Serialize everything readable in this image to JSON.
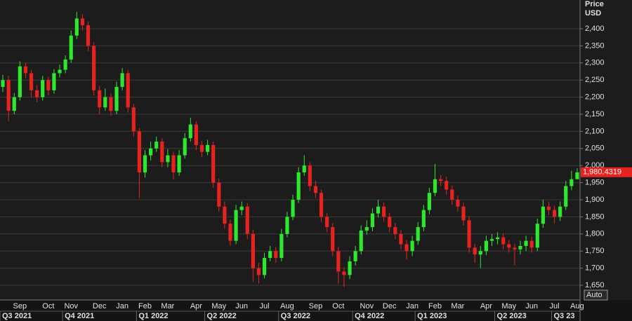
{
  "chart_data": {
    "type": "candlestick",
    "y_axis_title": "Price",
    "y_axis_unit": "USD",
    "button": "Auto",
    "up_color": "#2ee82e",
    "down_color": "#e8221e",
    "grid": true,
    "ylim": [
      1607,
      2484
    ],
    "yticks": [
      {
        "value": 1650,
        "label": "1,650"
      },
      {
        "value": 1700,
        "label": "1,700"
      },
      {
        "value": 1750,
        "label": "1,750"
      },
      {
        "value": 1800,
        "label": "1,800"
      },
      {
        "value": 1850,
        "label": "1,850"
      },
      {
        "value": 1900,
        "label": "1,900"
      },
      {
        "value": 1950,
        "label": "1,950"
      },
      {
        "value": 2000,
        "label": "2,000"
      },
      {
        "value": 2050,
        "label": "2,050"
      },
      {
        "value": 2100,
        "label": "2,100"
      },
      {
        "value": 2150,
        "label": "2,150"
      },
      {
        "value": 2200,
        "label": "2,200"
      },
      {
        "value": 2250,
        "label": "2,250"
      },
      {
        "value": 2300,
        "label": "2,300"
      },
      {
        "value": 2350,
        "label": "2,350"
      },
      {
        "value": 2400,
        "label": "2,400"
      }
    ],
    "last_price": {
      "value": 1980.4319,
      "label": "1,980.4319"
    },
    "categories": [
      null,
      null,
      null,
      "Sep",
      null,
      null,
      null,
      null,
      "Oct",
      null,
      null,
      null,
      "Nov",
      null,
      null,
      null,
      null,
      "Dec",
      null,
      null,
      null,
      "Jan",
      null,
      null,
      null,
      "Feb",
      null,
      null,
      null,
      "Mar",
      null,
      null,
      null,
      null,
      "Apr",
      null,
      null,
      null,
      "May",
      null,
      null,
      null,
      "Jun",
      null,
      null,
      null,
      "Jul",
      null,
      null,
      null,
      "Aug",
      null,
      null,
      null,
      null,
      "Sep",
      null,
      null,
      null,
      "Oct",
      null,
      null,
      null,
      null,
      "Nov",
      null,
      null,
      null,
      "Dec",
      null,
      null,
      null,
      "Jan",
      null,
      null,
      null,
      "Feb",
      null,
      null,
      null,
      "Mar",
      null,
      null,
      null,
      null,
      "Apr",
      null,
      null,
      null,
      "May",
      null,
      null,
      null,
      "Jun",
      null,
      null,
      null,
      "Jul",
      null,
      null,
      null,
      "Aug"
    ],
    "quarters": [
      "Q3 2021",
      null,
      null,
      null,
      null,
      null,
      null,
      null,
      null,
      null,
      null,
      "Q4 2021",
      null,
      null,
      null,
      null,
      null,
      null,
      null,
      null,
      null,
      null,
      null,
      null,
      "Q1 2022",
      null,
      null,
      null,
      null,
      null,
      null,
      null,
      null,
      null,
      null,
      null,
      "Q2 2022",
      null,
      null,
      null,
      null,
      null,
      null,
      null,
      null,
      null,
      null,
      null,
      null,
      "Q3 2022",
      null,
      null,
      null,
      null,
      null,
      null,
      null,
      null,
      null,
      null,
      null,
      null,
      "Q4 2022",
      null,
      null,
      null,
      null,
      null,
      null,
      null,
      null,
      null,
      null,
      "Q1 2023",
      null,
      null,
      null,
      null,
      null,
      null,
      null,
      null,
      null,
      null,
      null,
      null,
      null,
      "Q2 2023",
      null,
      null,
      null,
      null,
      null,
      null,
      null,
      null,
      null,
      "Q3 23",
      null,
      null,
      null,
      null
    ],
    "open": [
      2230,
      2250,
      2160,
      2200,
      2290,
      2270,
      2220,
      2200,
      2250,
      2220,
      2270,
      2280,
      2310,
      2380,
      2430,
      2410,
      2350,
      2220,
      2170,
      2200,
      2160,
      2230,
      2270,
      2170,
      2100,
      1980,
      2030,
      2050,
      2070,
      2010,
      2030,
      1980,
      2030,
      2080,
      2120,
      2060,
      2040,
      2060,
      1950,
      1880,
      1830,
      1780,
      1870,
      1880,
      1800,
      1700,
      1680,
      1730,
      1750,
      1730,
      1800,
      1850,
      1900,
      1980,
      2000,
      1940,
      1920,
      1850,
      1820,
      1750,
      1690,
      1680,
      1720,
      1750,
      1810,
      1820,
      1860,
      1880,
      1850,
      1820,
      1800,
      1770,
      1750,
      1780,
      1820,
      1870,
      1920,
      1960,
      1955,
      1930,
      1900,
      1880,
      1840,
      1760,
      1740,
      1750,
      1780,
      1785,
      1790,
      1770,
      1760,
      1755,
      1765,
      1780,
      1760,
      1830,
      1880,
      1870,
      1850,
      1880,
      1940,
      1960
    ],
    "high": [
      2265,
      2262,
      2212,
      2305,
      2300,
      2280,
      2235,
      2262,
      2260,
      2282,
      2295,
      2322,
      2395,
      2450,
      2442,
      2420,
      2360,
      2232,
      2225,
      2212,
      2245,
      2285,
      2280,
      2180,
      2110,
      2045,
      2070,
      2085,
      2080,
      2048,
      2040,
      2045,
      2095,
      2140,
      2130,
      2072,
      2075,
      2070,
      1962,
      1895,
      1842,
      1885,
      1895,
      1890,
      1812,
      1715,
      1745,
      1765,
      1762,
      1815,
      1865,
      1915,
      1995,
      2030,
      2010,
      1955,
      1930,
      1862,
      1832,
      1762,
      1702,
      1735,
      1765,
      1825,
      1840,
      1875,
      1900,
      1892,
      1862,
      1832,
      1812,
      1782,
      1795,
      1835,
      1885,
      1935,
      2005,
      1972,
      1968,
      1942,
      1912,
      1892,
      1852,
      1772,
      1765,
      1795,
      1800,
      1805,
      1802,
      1782,
      1772,
      1780,
      1795,
      1792,
      1845,
      1900,
      1895,
      1882,
      1895,
      1955,
      1985,
      1992
    ],
    "low": [
      2215,
      2130,
      2150,
      2190,
      2255,
      2200,
      2185,
      2190,
      2205,
      2210,
      2258,
      2270,
      2300,
      2370,
      2395,
      2335,
      2205,
      2150,
      2160,
      2145,
      2150,
      2220,
      2155,
      2085,
      1905,
      1965,
      2015,
      2040,
      1995,
      1995,
      1960,
      1970,
      2020,
      2070,
      2045,
      2025,
      2030,
      1935,
      1865,
      1815,
      1765,
      1770,
      1855,
      1785,
      1660,
      1655,
      1670,
      1720,
      1715,
      1720,
      1790,
      1840,
      1890,
      1970,
      1925,
      1905,
      1835,
      1805,
      1735,
      1655,
      1645,
      1668,
      1708,
      1740,
      1798,
      1808,
      1848,
      1835,
      1805,
      1785,
      1755,
      1725,
      1735,
      1768,
      1808,
      1858,
      1910,
      1940,
      1915,
      1885,
      1865,
      1825,
      1745,
      1715,
      1700,
      1738,
      1765,
      1770,
      1755,
      1745,
      1708,
      1740,
      1750,
      1745,
      1750,
      1818,
      1855,
      1830,
      1838,
      1870,
      1928,
      1960
    ],
    "close": [
      2250,
      2160,
      2200,
      2290,
      2270,
      2220,
      2200,
      2250,
      2220,
      2270,
      2280,
      2310,
      2380,
      2430,
      2410,
      2350,
      2220,
      2170,
      2200,
      2160,
      2230,
      2270,
      2170,
      2100,
      1980,
      2030,
      2050,
      2070,
      2010,
      2030,
      1980,
      2030,
      2080,
      2120,
      2060,
      2040,
      2060,
      1950,
      1880,
      1830,
      1780,
      1870,
      1880,
      1800,
      1700,
      1680,
      1730,
      1750,
      1730,
      1800,
      1850,
      1900,
      1980,
      2000,
      1940,
      1920,
      1850,
      1820,
      1750,
      1690,
      1680,
      1720,
      1750,
      1810,
      1820,
      1860,
      1880,
      1850,
      1820,
      1800,
      1770,
      1750,
      1780,
      1820,
      1870,
      1920,
      1960,
      1955,
      1930,
      1900,
      1880,
      1840,
      1760,
      1740,
      1750,
      1780,
      1785,
      1790,
      1770,
      1760,
      1755,
      1765,
      1780,
      1760,
      1830,
      1880,
      1870,
      1850,
      1880,
      1940,
      1960,
      1980
    ]
  }
}
